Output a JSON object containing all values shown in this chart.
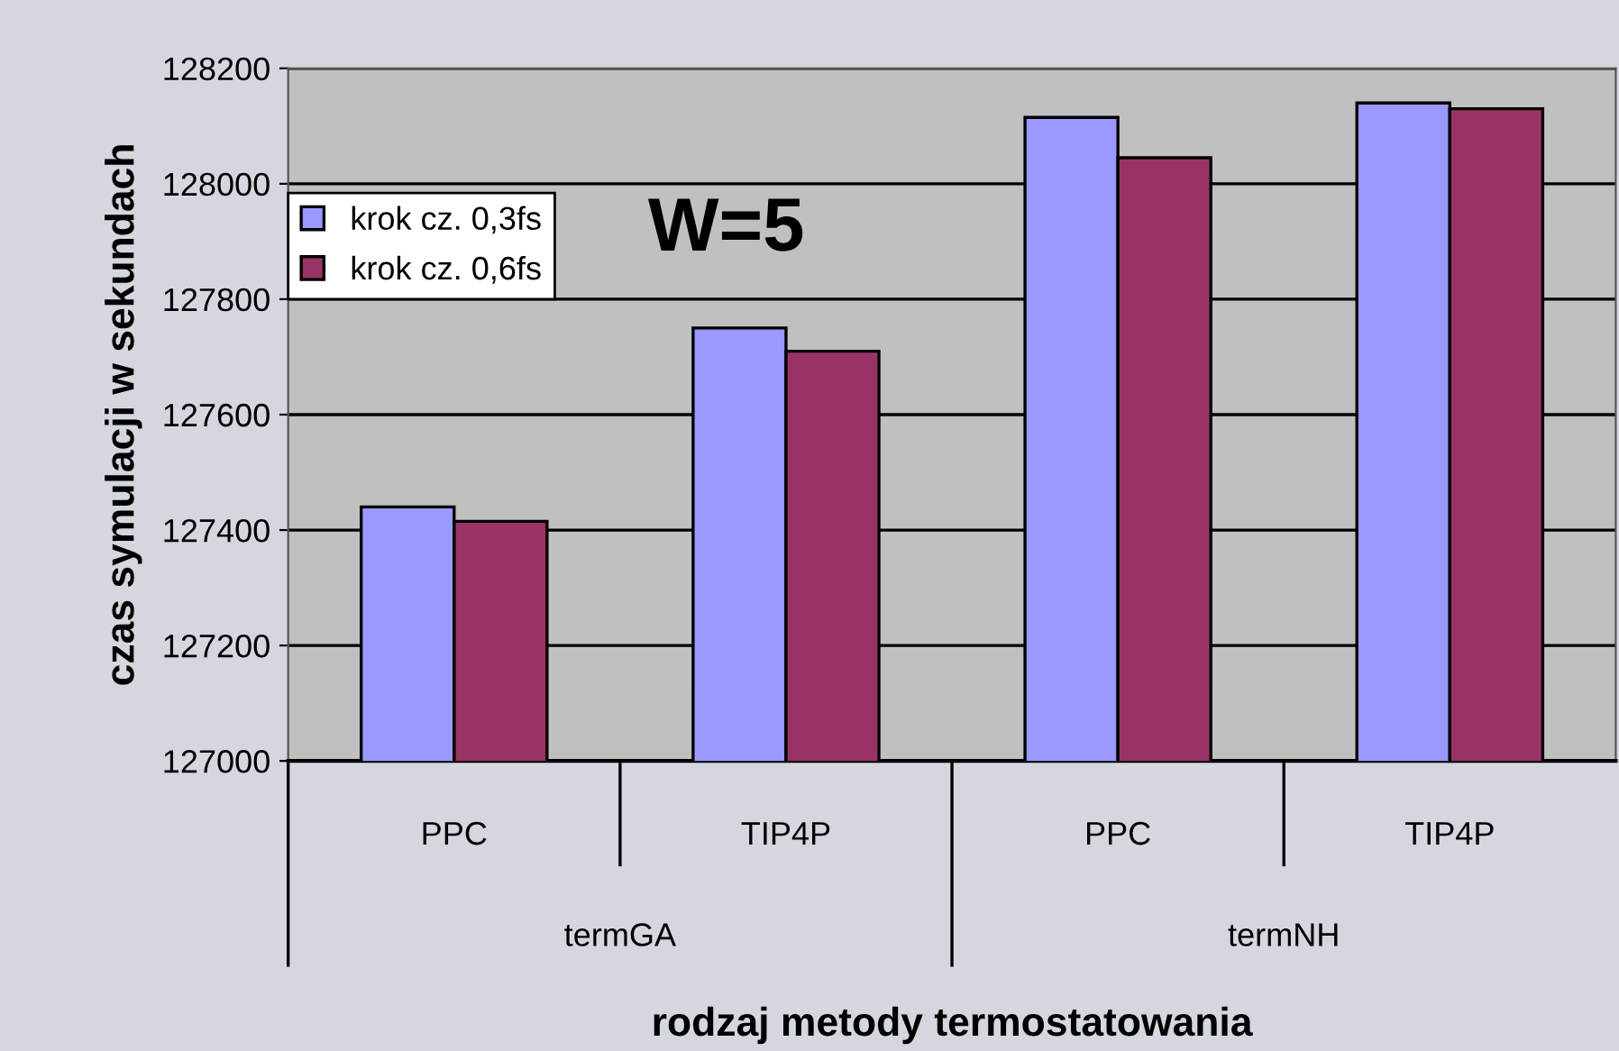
{
  "chart_data": {
    "type": "bar",
    "xlabel": "rodzaj metody termostatowania",
    "ylabel": "czas symulacji w sekundach",
    "categories": [
      "PPC",
      "TIP4P",
      "PPC",
      "TIP4P"
    ],
    "series": [
      {
        "name": "krok cz. 0,3fs",
        "color": "#9999ff",
        "values": [
          127440,
          127750,
          128115,
          128140
        ]
      },
      {
        "name": "krok cz. 0,6fs",
        "color": "#993366",
        "values": [
          127415,
          127710,
          128045,
          128130
        ]
      }
    ],
    "ylim": [
      127000,
      128200
    ],
    "yticks": [
      127000,
      127200,
      127400,
      127600,
      127800,
      128000,
      128200
    ],
    "grid": "y",
    "legend": "top left",
    "annotations": [
      "W=5",
      "termGA",
      "termNH"
    ]
  }
}
